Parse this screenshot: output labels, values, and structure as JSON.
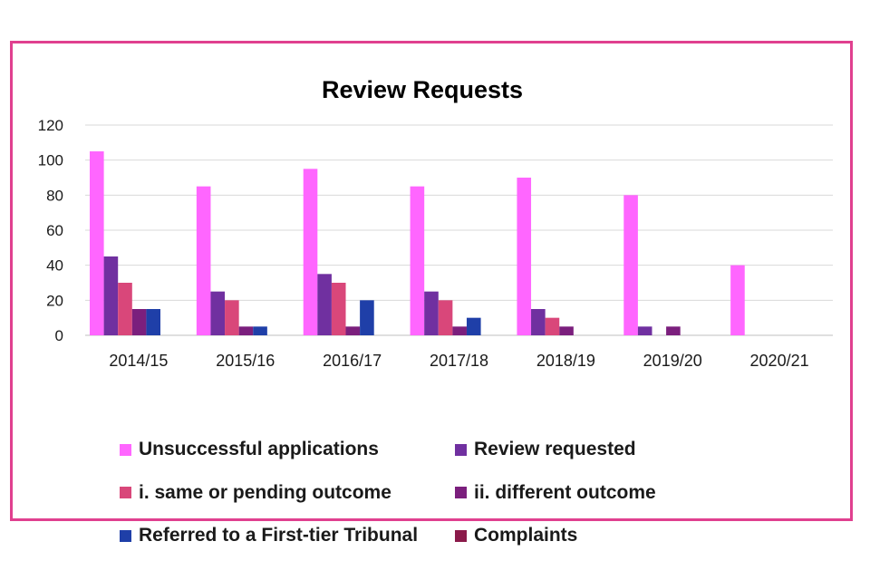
{
  "chart_data": {
    "type": "bar",
    "title": "Review Requests",
    "xlabel": "",
    "ylabel": "",
    "ylim": [
      0,
      120
    ],
    "yticks": [
      0,
      20,
      40,
      60,
      80,
      100,
      120
    ],
    "grid": true,
    "legend_position": "bottom",
    "categories": [
      "2014/15",
      "2015/16",
      "2016/17",
      "2017/18",
      "2018/19",
      "2019/20",
      "2020/21"
    ],
    "series": [
      {
        "name": "Unsuccessful applications",
        "color": "#ff66ff",
        "values": [
          105,
          85,
          95,
          85,
          90,
          80,
          40
        ]
      },
      {
        "name": "Review requested",
        "color": "#7030a0",
        "values": [
          45,
          25,
          35,
          25,
          15,
          5,
          0
        ]
      },
      {
        "name": "i. same or pending outcome",
        "color": "#d9477a",
        "values": [
          30,
          20,
          30,
          20,
          10,
          0,
          0
        ]
      },
      {
        "name": "ii. different outcome",
        "color": "#7b1f7d",
        "values": [
          15,
          5,
          5,
          5,
          5,
          5,
          0
        ]
      },
      {
        "name": "Referred to a First-tier Tribunal",
        "color": "#1f3fa8",
        "values": [
          15,
          5,
          20,
          10,
          0,
          0,
          0
        ]
      },
      {
        "name": "Complaints",
        "color": "#8b1a4a",
        "values": [
          0,
          0,
          0,
          0,
          0,
          0,
          0
        ]
      }
    ]
  }
}
